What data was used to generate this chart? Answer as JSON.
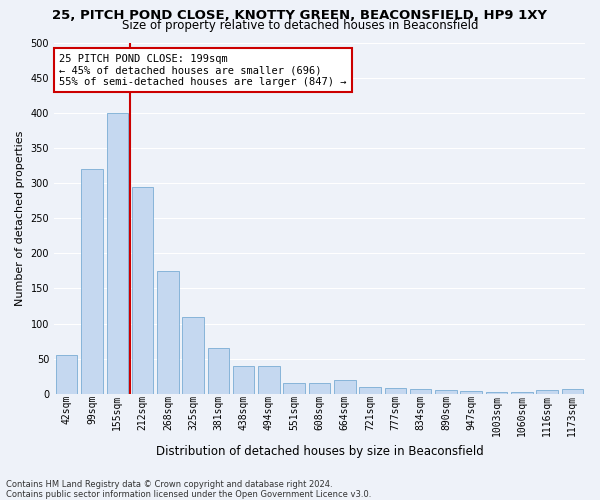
{
  "title": "25, PITCH POND CLOSE, KNOTTY GREEN, BEACONSFIELD, HP9 1XY",
  "subtitle": "Size of property relative to detached houses in Beaconsfield",
  "xlabel": "Distribution of detached houses by size in Beaconsfield",
  "ylabel": "Number of detached properties",
  "footer_line1": "Contains HM Land Registry data © Crown copyright and database right 2024.",
  "footer_line2": "Contains public sector information licensed under the Open Government Licence v3.0.",
  "annotation_line1": "25 PITCH POND CLOSE: 199sqm",
  "annotation_line2": "← 45% of detached houses are smaller (696)",
  "annotation_line3": "55% of semi-detached houses are larger (847) →",
  "bar_labels": [
    "42sqm",
    "99sqm",
    "155sqm",
    "212sqm",
    "268sqm",
    "325sqm",
    "381sqm",
    "438sqm",
    "494sqm",
    "551sqm",
    "608sqm",
    "664sqm",
    "721sqm",
    "777sqm",
    "834sqm",
    "890sqm",
    "947sqm",
    "1003sqm",
    "1060sqm",
    "1116sqm",
    "1173sqm"
  ],
  "bar_values": [
    55,
    320,
    400,
    295,
    175,
    110,
    65,
    40,
    40,
    15,
    15,
    20,
    10,
    8,
    6,
    5,
    4,
    3,
    2,
    5,
    7
  ],
  "bar_color": "#c5d8f0",
  "bar_edge_color": "#7aadd4",
  "vline_color": "#cc0000",
  "annotation_box_color": "#cc0000",
  "vline_x": 2.5,
  "ylim": [
    0,
    500
  ],
  "yticks": [
    0,
    50,
    100,
    150,
    200,
    250,
    300,
    350,
    400,
    450,
    500
  ],
  "background_color": "#eef2f9",
  "grid_color": "#ffffff",
  "title_fontsize": 9.5,
  "subtitle_fontsize": 8.5,
  "ylabel_fontsize": 8,
  "xlabel_fontsize": 8.5,
  "tick_fontsize": 7,
  "annotation_fontsize": 7.5,
  "footer_fontsize": 6
}
